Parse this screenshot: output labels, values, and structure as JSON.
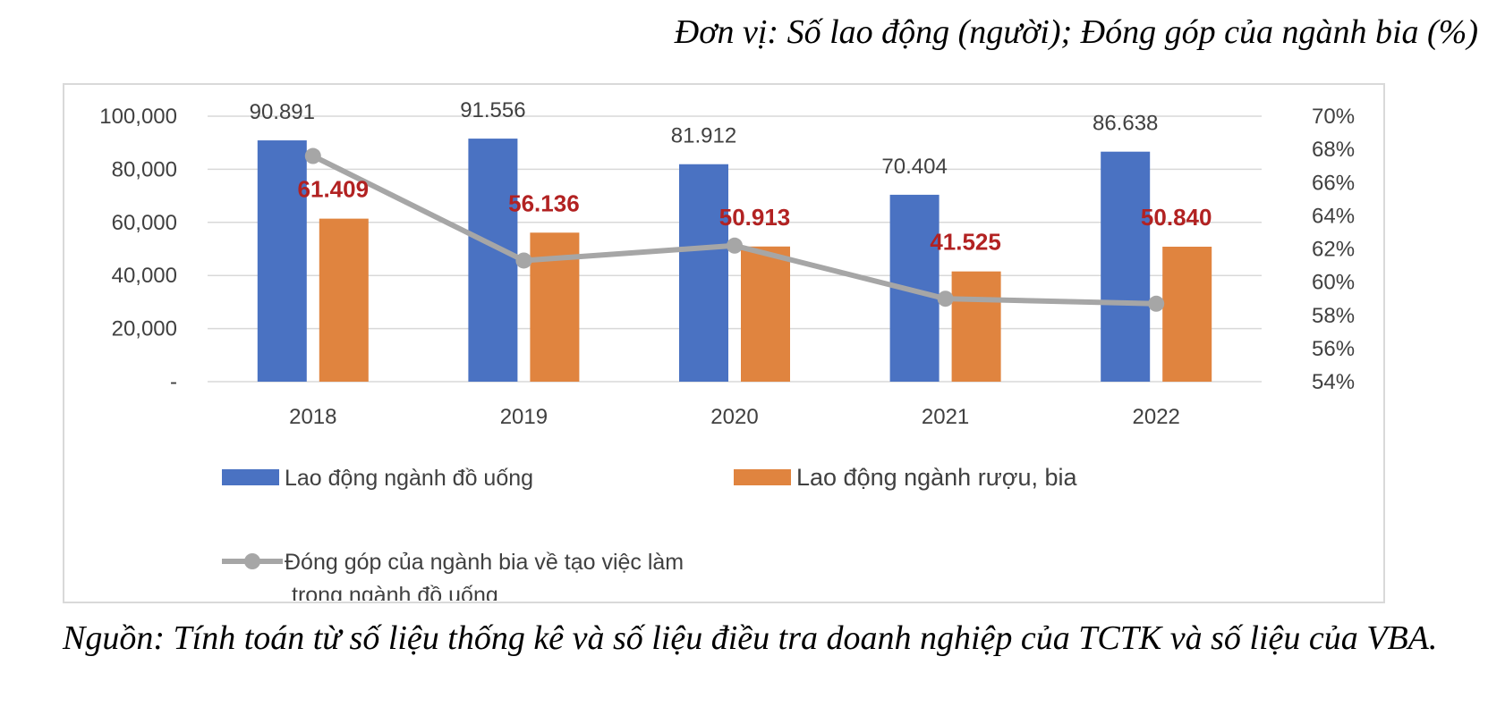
{
  "unit_note": "Đơn vị: Số lao động (người); Đóng góp của ngành bia (%)",
  "source_note": "Nguồn: Tính toán từ số liệu thống kê và số liệu điều tra doanh nghiệp của TCTK và số liệu của VBA.",
  "colors": {
    "blue": "#4a72c2",
    "orange": "#e0843f",
    "line": "#a6a6a6",
    "orange_label": "#b22222"
  },
  "chart_data": {
    "type": "bar",
    "categories": [
      "2018",
      "2019",
      "2020",
      "2021",
      "2022"
    ],
    "ylim": [
      0,
      100000
    ],
    "y_ticks": [
      "-",
      "20,000",
      "40,000",
      "60,000",
      "80,000",
      "100,000"
    ],
    "y2lim": [
      0.54,
      0.7
    ],
    "y2_ticks": [
      "54%",
      "56%",
      "58%",
      "60%",
      "62%",
      "64%",
      "66%",
      "68%",
      "70%"
    ],
    "legend_position": "bottom",
    "grid": true,
    "series": [
      {
        "name": "Lao động ngành đồ uống",
        "type": "bar",
        "axis": "left",
        "values": [
          90891,
          91556,
          81912,
          70404,
          86638
        ],
        "labels": [
          "90.891",
          "91.556",
          "81.912",
          "70.404",
          "86.638"
        ]
      },
      {
        "name": "Lao động ngành rượu, bia",
        "type": "bar",
        "axis": "left",
        "values": [
          61409,
          56136,
          50913,
          41525,
          50840
        ],
        "labels": [
          "61.409",
          "56.136",
          "50.913",
          "41.525",
          "50.840"
        ]
      },
      {
        "name": "Đóng góp của ngành bia về tạo việc làm trong ngành đồ uống",
        "name_lines": [
          "Đóng góp của ngành bia về tạo việc làm",
          "trong ngành đồ uống"
        ],
        "type": "line",
        "axis": "right",
        "values": [
          0.676,
          0.613,
          0.622,
          0.59,
          0.587
        ]
      }
    ]
  }
}
